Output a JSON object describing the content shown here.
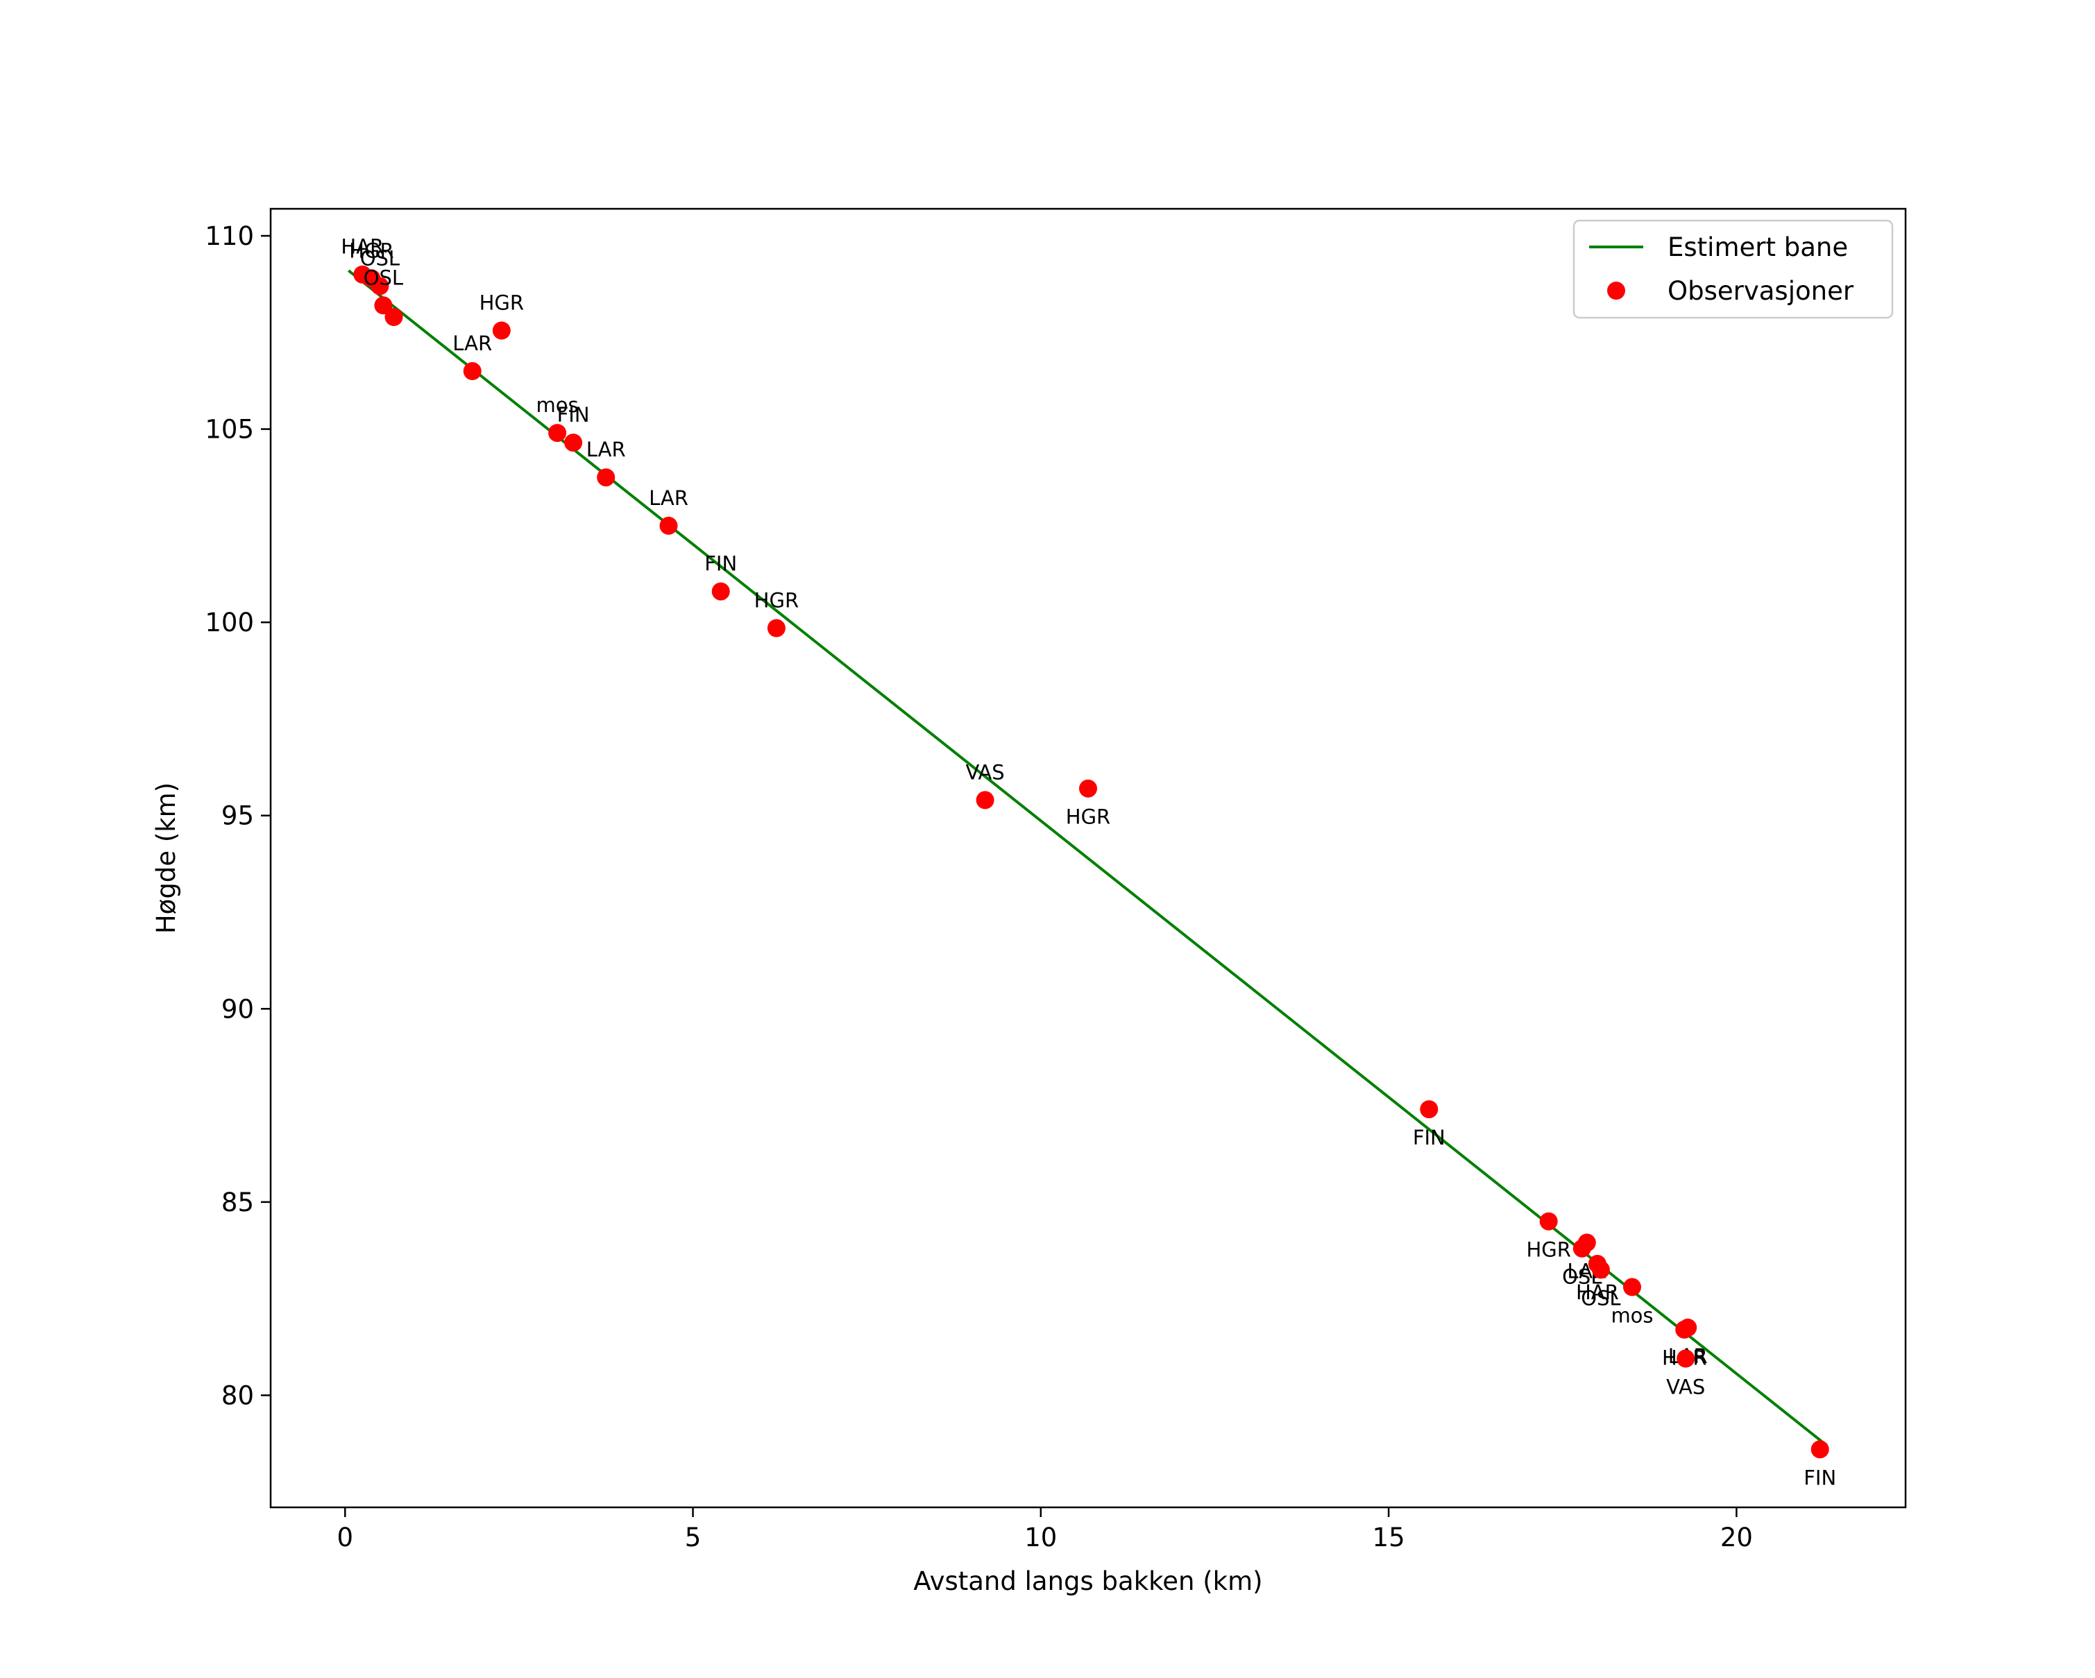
{
  "chart_data": {
    "type": "scatter",
    "xlabel": "Avstand langs bakken (km)",
    "ylabel": "Høgde (km)",
    "xlim": [
      -1.07,
      22.43
    ],
    "ylim": [
      77.1,
      110.7
    ],
    "xticks": [
      0,
      5,
      10,
      15,
      20
    ],
    "yticks": [
      80,
      85,
      90,
      95,
      100,
      105,
      110
    ],
    "grid": false,
    "legend_position": "top-right",
    "colors": {
      "line": "#008000",
      "points": "#ff0000",
      "axes": "#000000",
      "legend_border": "#cccccc"
    },
    "legend": [
      {
        "label": "Estimert bane",
        "kind": "line"
      },
      {
        "label": "Observasjoner",
        "kind": "marker"
      }
    ],
    "series": [
      {
        "name": "Estimert bane",
        "type": "line",
        "points": [
          [
            0.05,
            109.1
          ],
          [
            21.3,
            78.7
          ]
        ]
      },
      {
        "name": "Observasjoner",
        "type": "scatter",
        "points": [
          {
            "x": 0.25,
            "y": 109.0,
            "label": "HAR",
            "label_pos": "above"
          },
          {
            "x": 0.38,
            "y": 108.9,
            "label": "HGR",
            "label_pos": "above"
          },
          {
            "x": 0.5,
            "y": 108.7,
            "label": "OSL",
            "label_pos": "above"
          },
          {
            "x": 0.55,
            "y": 108.2,
            "label": "OSL",
            "label_pos": "above"
          },
          {
            "x": 0.7,
            "y": 107.9,
            "label": "",
            "label_pos": "above"
          },
          {
            "x": 2.25,
            "y": 107.55,
            "label": "HGR",
            "label_pos": "above"
          },
          {
            "x": 1.83,
            "y": 106.5,
            "label": "LAR",
            "label_pos": "above"
          },
          {
            "x": 3.05,
            "y": 104.9,
            "label": "mos",
            "label_pos": "above"
          },
          {
            "x": 3.28,
            "y": 104.65,
            "label": "FIN",
            "label_pos": "above"
          },
          {
            "x": 3.75,
            "y": 103.75,
            "label": "LAR",
            "label_pos": "above"
          },
          {
            "x": 4.65,
            "y": 102.5,
            "label": "LAR",
            "label_pos": "above"
          },
          {
            "x": 5.4,
            "y": 100.8,
            "label": "FIN",
            "label_pos": "above"
          },
          {
            "x": 6.2,
            "y": 99.85,
            "label": "HGR",
            "label_pos": "above"
          },
          {
            "x": 9.2,
            "y": 95.4,
            "label": "VAS",
            "label_pos": "above"
          },
          {
            "x": 10.68,
            "y": 95.7,
            "label": "HGR",
            "label_pos": "below"
          },
          {
            "x": 15.58,
            "y": 87.4,
            "label": "FIN",
            "label_pos": "below"
          },
          {
            "x": 17.3,
            "y": 84.5,
            "label": "HGR",
            "label_pos": "below"
          },
          {
            "x": 17.78,
            "y": 83.8,
            "label": "OSL",
            "label_pos": "below"
          },
          {
            "x": 17.85,
            "y": 83.95,
            "label": "LAR",
            "label_pos": "below"
          },
          {
            "x": 18.0,
            "y": 83.4,
            "label": "HAR",
            "label_pos": "below"
          },
          {
            "x": 18.05,
            "y": 83.25,
            "label": "OSL",
            "label_pos": "below"
          },
          {
            "x": 18.5,
            "y": 82.8,
            "label": "mos",
            "label_pos": "below"
          },
          {
            "x": 19.25,
            "y": 81.7,
            "label": "HGR",
            "label_pos": "below"
          },
          {
            "x": 19.3,
            "y": 81.75,
            "label": "LAR",
            "label_pos": "below"
          },
          {
            "x": 19.27,
            "y": 80.95,
            "label": "VAS",
            "label_pos": "below"
          },
          {
            "x": 21.2,
            "y": 78.6,
            "label": "FIN",
            "label_pos": "below"
          }
        ]
      }
    ]
  }
}
